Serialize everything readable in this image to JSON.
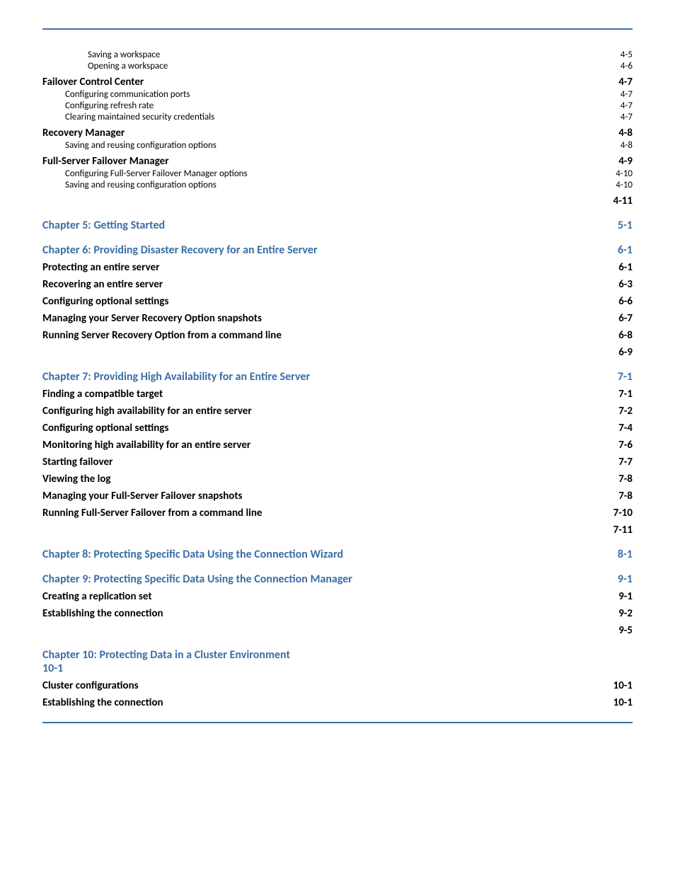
{
  "colors": {
    "accent": "#3a6ea5",
    "text": "#000000",
    "background": "#ffffff"
  },
  "typography": {
    "font_family": "Gill Sans",
    "chapter_size_pt": 12,
    "section_size_pt": 11,
    "sub_size_pt": 10
  },
  "toc": [
    {
      "level": "sub2",
      "label": "Saving a workspace",
      "page": "4-5"
    },
    {
      "level": "sub2",
      "label": "Opening a workspace",
      "page": "4-6"
    },
    {
      "level": "section",
      "label": "Failover Control Center",
      "page": "4-7"
    },
    {
      "level": "sub1",
      "label": "Configuring communication ports",
      "page": "4-7"
    },
    {
      "level": "sub1",
      "label": "Configuring refresh rate",
      "page": "4-7"
    },
    {
      "level": "sub1",
      "label": "Clearing maintained security credentials",
      "page": "4-7"
    },
    {
      "level": "section",
      "label": "Recovery Manager",
      "page": "4-8"
    },
    {
      "level": "sub1",
      "label": "Saving and reusing configuration options",
      "page": "4-8"
    },
    {
      "level": "section",
      "label": "Full-Server Failover Manager",
      "page": "4-9"
    },
    {
      "level": "sub1",
      "label": "Configuring Full-Server Failover Manager options",
      "page": "4-10"
    },
    {
      "level": "sub1",
      "label": "Saving and reusing configuration options",
      "page": "4-10"
    },
    {
      "level": "section",
      "label": "",
      "page": "4-11"
    },
    {
      "level": "chapter",
      "label": "Chapter 5: Getting Started",
      "page": "5-1"
    },
    {
      "level": "chapter",
      "label": "Chapter 6: Providing Disaster Recovery for an Entire Server",
      "page": "6-1"
    },
    {
      "level": "section",
      "label": "Protecting an entire server",
      "page": "6-1"
    },
    {
      "level": "section",
      "label": "Recovering an entire server",
      "page": "6-3"
    },
    {
      "level": "section",
      "label": "Configuring optional settings",
      "page": "6-6"
    },
    {
      "level": "section",
      "label": "Managing your Server Recovery Option snapshots",
      "page": "6-7"
    },
    {
      "level": "section",
      "label": "Running Server Recovery Option from a command line",
      "page": "6-8"
    },
    {
      "level": "section",
      "label": "",
      "page": "6-9"
    },
    {
      "level": "chapter",
      "label": "Chapter 7: Providing High Availability for an Entire Server",
      "page": "7-1"
    },
    {
      "level": "section",
      "label": "Finding a compatible target",
      "page": "7-1"
    },
    {
      "level": "section",
      "label": "Configuring high availability for an entire server",
      "page": "7-2"
    },
    {
      "level": "section",
      "label": "Configuring optional settings",
      "page": "7-4"
    },
    {
      "level": "section",
      "label": "Monitoring high availability for an entire server",
      "page": "7-6"
    },
    {
      "level": "section",
      "label": "Starting failover",
      "page": "7-7"
    },
    {
      "level": "section",
      "label": "Viewing the log",
      "page": "7-8"
    },
    {
      "level": "section",
      "label": "Managing your Full-Server Failover snapshots",
      "page": "7-8"
    },
    {
      "level": "section",
      "label": "Running Full-Server Failover from a command line",
      "page": "7-10"
    },
    {
      "level": "section",
      "label": "",
      "page": "7-11"
    },
    {
      "level": "chapter",
      "label": "Chapter 8: Protecting Specific Data Using the Connection Wizard",
      "page": "8-1"
    },
    {
      "level": "chapter",
      "label": "Chapter 9: Protecting Specific Data Using the Connection Manager",
      "page": "9-1"
    },
    {
      "level": "section",
      "label": "Creating a replication set",
      "page": "9-1"
    },
    {
      "level": "section",
      "label": "Establishing the connection",
      "page": "9-2"
    },
    {
      "level": "section",
      "label": "",
      "page": "9-5"
    },
    {
      "level": "chapter-wrap",
      "label": "Chapter 10: Protecting Data in a Cluster Environment",
      "page": "10-1"
    },
    {
      "level": "section",
      "label": "Cluster configurations",
      "page": "10-1"
    },
    {
      "level": "section",
      "label": "Establishing the connection",
      "page": "10-1"
    }
  ]
}
